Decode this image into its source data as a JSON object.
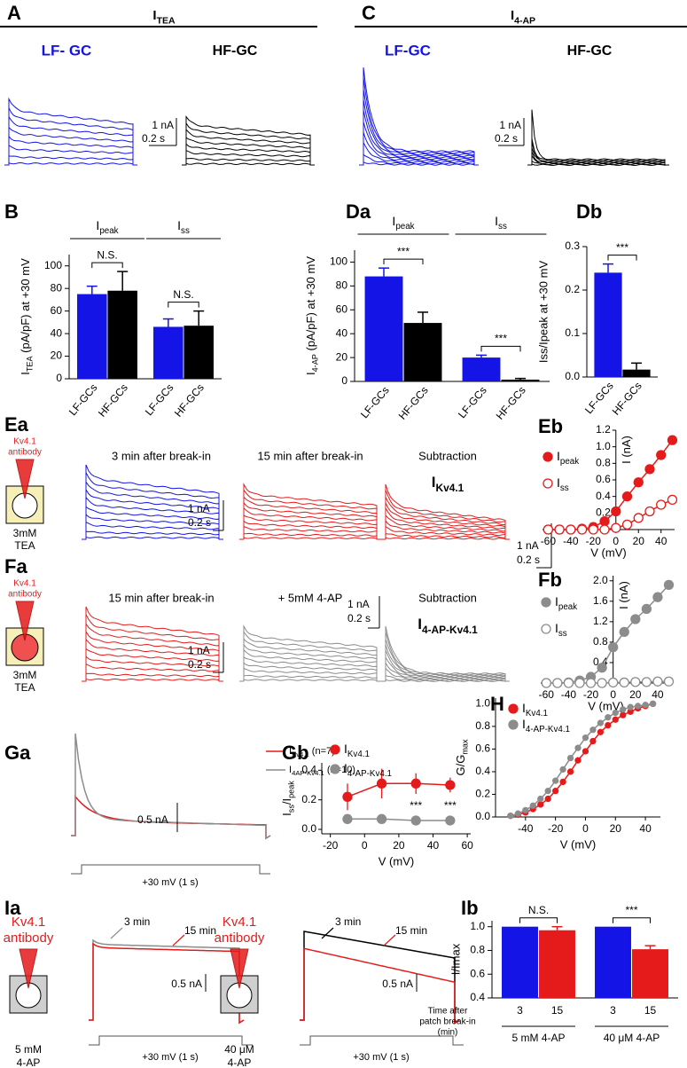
{
  "figure": {
    "A": {
      "label": "A",
      "title": [
        "I",
        "TEA"
      ],
      "left": "LF- GC",
      "right": "HF-GC",
      "scale_y": "1 nA",
      "scale_x": "0.2 s"
    },
    "C": {
      "label": "C",
      "title": [
        "I",
        "4-AP"
      ],
      "left": "LF-GC",
      "right": "HF-GC",
      "scale_y": "1 nA",
      "scale_x": "0.2 s"
    },
    "Ea": {
      "label": "Ea",
      "antibody_1": "Kv4.1",
      "antibody_2": "antibody",
      "bath_1": "3mM",
      "bath_2": "TEA",
      "trace_1": "3 min after break-in",
      "trace_2": "15 min after break-in",
      "trace_3": "Subtraction",
      "trace_3_current": [
        "I",
        "Kv4.1"
      ],
      "scale_y": "1 nA",
      "scale_x": "0.2 s",
      "scale2_y": "1 nA",
      "scale2_x": "0.2 s"
    },
    "Fa": {
      "label": "Fa",
      "antibody_1": "Kv4.1",
      "antibody_2": "antibody",
      "bath_1": "3mM",
      "bath_2": "TEA",
      "trace_1": "15 min after break-in",
      "trace_2": "+ 5mM 4-AP",
      "trace_3": "Subtraction",
      "trace_3_current": [
        "I",
        "4-AP-Kv4.1"
      ],
      "scale_y": "1 nA",
      "scale_x": "0.2 s",
      "scale2_y": "1 nA",
      "scale2_x": "0.2 s"
    },
    "Ga": {
      "label": "Ga",
      "legend_1": [
        "I",
        "Kv4.1",
        " (n=7)"
      ],
      "legend_2": [
        "I",
        "4AP-Kv4.1",
        " (n=10)"
      ],
      "scale_y": "0.5 nA",
      "protocol": "+30 mV (1 s)"
    },
    "Ia": {
      "label": "Ia",
      "left": {
        "antibody_1": "Kv4.1",
        "antibody_2": "antibody",
        "early": "3 min",
        "late": "15 min",
        "scale_y": "0.5 nA",
        "protocol": "+30 mV  (1 s)",
        "drug_1": "5 mM",
        "drug_2": "4-AP"
      },
      "right": {
        "antibody_1": "Kv4.1",
        "antibody_2": "antibody",
        "early": "3 min",
        "late": "15 min",
        "scale_y": "0.5 nA",
        "protocol": "+30 mV  (1 s)",
        "drug_1": "40 μM",
        "drug_2": "4-AP"
      }
    }
  },
  "chart_data": [
    {
      "label": "B",
      "type": "bar",
      "ylabel": [
        "I",
        "TEA",
        " (pA/pF) at +30 mV"
      ],
      "categories": [
        "LF-GCs",
        "HF-GCs",
        "LF-GCs",
        "HF-GCs"
      ],
      "values": [
        75,
        78,
        46,
        47
      ],
      "errors": [
        7,
        17,
        7,
        13
      ],
      "colors": [
        "#1414e6",
        "#000000",
        "#1414e6",
        "#000000"
      ],
      "ylim": [
        0,
        110
      ],
      "yticks": [
        0,
        20,
        40,
        60,
        80,
        100
      ],
      "groups": [
        [
          "I",
          "peak"
        ],
        [
          "I",
          "ss"
        ]
      ],
      "annotations": [
        "N.S.",
        "N.S."
      ],
      "xtick_rotation": 50
    },
    {
      "label": "Da",
      "type": "bar",
      "ylabel": [
        "I",
        "4-AP",
        " (pA/pF) at +30 mV"
      ],
      "categories": [
        "LF-GCs",
        "HF-GCs",
        "LF-GCs",
        "HF-GCs"
      ],
      "values": [
        88,
        49,
        20,
        1.5
      ],
      "errors": [
        7,
        9,
        2,
        1
      ],
      "colors": [
        "#1414e6",
        "#000000",
        "#1414e6",
        "#000000"
      ],
      "ylim": [
        0,
        110
      ],
      "yticks": [
        0,
        20,
        40,
        60,
        80,
        100
      ],
      "groups": [
        [
          "I",
          "peak"
        ],
        [
          "I",
          "ss"
        ]
      ],
      "annotations": [
        "***",
        "***"
      ],
      "xtick_rotation": 50
    },
    {
      "label": "Db",
      "type": "bar",
      "ylabel": "Iss/Ipeak at +30 mV",
      "categories": [
        "LF-GCs",
        "HF-GCs"
      ],
      "values": [
        0.24,
        0.017
      ],
      "errors": [
        0.02,
        0.015
      ],
      "colors": [
        "#1414e6",
        "#000000"
      ],
      "ylim": [
        0,
        0.3
      ],
      "yticks": [
        {
          "value": 0,
          "label": "0.0"
        },
        0.1,
        0.2,
        0.3
      ],
      "annotations": [
        "***"
      ],
      "xtick_rotation": 50
    },
    {
      "label": "Eb",
      "type": "line",
      "axes": "zero",
      "legend": "upper left",
      "x": [
        -60,
        -50,
        -40,
        -30,
        -20,
        -10,
        0,
        10,
        20,
        30,
        40,
        50
      ],
      "series": [
        {
          "name": [
            "I",
            "peak"
          ],
          "color": "#e51b1b",
          "values": [
            0,
            0,
            0,
            0.01,
            0.03,
            0.1,
            0.22,
            0.4,
            0.57,
            0.73,
            0.9,
            1.08
          ]
        },
        {
          "name": [
            "I",
            "ss"
          ],
          "color": "#e51b1b",
          "open": true,
          "values": [
            0,
            0,
            0,
            0,
            0,
            0,
            0.02,
            0.06,
            0.14,
            0.22,
            0.3,
            0.36
          ]
        }
      ],
      "xlim": [
        -65,
        52
      ],
      "xticks": [
        -60,
        -40,
        -20,
        0,
        20,
        40
      ],
      "ylim": [
        0,
        1.2
      ],
      "yticks": [
        0.2,
        0.4,
        0.6,
        0.8,
        {
          "value": 1,
          "label": "1.0"
        },
        1.2
      ],
      "xlabel": "V (mV)",
      "ylabel": "I (nA)"
    },
    {
      "label": "Fb",
      "type": "line",
      "axes": "zero",
      "legend": "upper left",
      "x": [
        -60,
        -50,
        -40,
        -30,
        -20,
        -10,
        0,
        10,
        20,
        30,
        40,
        50
      ],
      "series": [
        {
          "name": [
            "I",
            "peak"
          ],
          "color": "#8c8c8c",
          "values": [
            0,
            0,
            0.01,
            0.05,
            0.12,
            0.3,
            0.7,
            1.0,
            1.25,
            1.45,
            1.68,
            1.92
          ]
        },
        {
          "name": [
            "I",
            "ss"
          ],
          "color": "#8c8c8c",
          "open": true,
          "values": [
            0,
            0,
            0,
            0,
            0,
            0,
            0.01,
            0.01,
            0.02,
            0.02,
            0.03,
            0.03
          ]
        }
      ],
      "xlim": [
        -65,
        52
      ],
      "xticks": [
        -60,
        -40,
        -20,
        0,
        20,
        40
      ],
      "ylim": [
        0,
        2.1
      ],
      "yticks": [
        0.4,
        0.8,
        1.2,
        1.6,
        {
          "value": 2,
          "label": "2.0"
        }
      ],
      "xlabel": "V (mV)",
      "ylabel": "I (nA)"
    },
    {
      "label": "Gb",
      "type": "line",
      "axes": "box",
      "legend": "top",
      "x": [
        -10,
        10,
        30,
        50
      ],
      "series": [
        {
          "name": [
            "I",
            "Kv4.1"
          ],
          "color": "#e51b1b",
          "values": [
            0.22,
            0.31,
            0.31,
            0.3
          ],
          "errors": [
            0.09,
            0.1,
            0.07,
            0.05
          ]
        },
        {
          "name": [
            "I",
            "4-AP-Kv4.1"
          ],
          "color": "#8c8c8c",
          "values": [
            0.07,
            0.07,
            0.06,
            0.06
          ],
          "errors": [
            0.01,
            0.01,
            0.01,
            0.01
          ]
        }
      ],
      "annotations": [
        "***",
        "***"
      ],
      "xlim": [
        -25,
        62
      ],
      "xticks": [
        -20,
        0,
        20,
        40,
        60
      ],
      "ylim": [
        -0.03,
        0.45
      ],
      "yticks": [
        {
          "value": 0,
          "label": "0.0"
        },
        0.2,
        0.4
      ],
      "xlabel": "V (mV)",
      "ylabel": [
        "I",
        "ss",
        "/I",
        "peak"
      ]
    },
    {
      "label": "H",
      "type": "line",
      "axes": "box",
      "legend": "upper left",
      "marker_size": 3,
      "x": [
        -50,
        -45,
        -40,
        -35,
        -30,
        -25,
        -20,
        -15,
        -10,
        -5,
        0,
        5,
        10,
        15,
        20,
        25,
        30,
        35,
        40,
        45
      ],
      "series": [
        {
          "name": [
            "I",
            "Kv4.1"
          ],
          "color": "#e51b1b",
          "values": [
            0.01,
            0.02,
            0.04,
            0.07,
            0.11,
            0.16,
            0.23,
            0.31,
            0.4,
            0.5,
            0.58,
            0.67,
            0.75,
            0.81,
            0.86,
            0.9,
            0.93,
            0.96,
            0.98,
            1.0
          ]
        },
        {
          "name": [
            "I",
            "4-AP-Kv4.1"
          ],
          "color": "#8c8c8c",
          "values": [
            0.01,
            0.03,
            0.06,
            0.1,
            0.16,
            0.23,
            0.32,
            0.42,
            0.52,
            0.61,
            0.7,
            0.77,
            0.83,
            0.88,
            0.92,
            0.95,
            0.97,
            0.98,
            0.99,
            1.0
          ]
        }
      ],
      "xlim": [
        -60,
        50
      ],
      "xticks": [
        -40,
        -20,
        0,
        20,
        40
      ],
      "ylim": [
        0,
        1.05
      ],
      "yticks": [
        {
          "value": 0,
          "label": "0.0"
        },
        0.2,
        0.4,
        0.6,
        0.8,
        {
          "value": 1,
          "label": "1.0"
        }
      ],
      "xlabel": "V (mV)",
      "ylabel": [
        "G/G",
        "max"
      ]
    },
    {
      "label": "Ib",
      "type": "bar",
      "ylabel": "I/Imax",
      "categories": [
        "3",
        "15",
        "3",
        "15"
      ],
      "values": [
        1.0,
        0.97,
        1.0,
        0.81
      ],
      "errors": [
        0,
        0.03,
        0,
        0.03
      ],
      "colors": [
        "#1414e6",
        "#e51b1b",
        "#1414e6",
        "#e51b1b"
      ],
      "ylim": [
        0.4,
        1.05
      ],
      "yticks": [
        0.4,
        0.6,
        0.8,
        {
          "value": 1,
          "label": "1.0"
        }
      ],
      "annotations": [
        "N.S.",
        "***"
      ],
      "xtick_rotation": 0,
      "xgroups": [
        "5 mM 4-AP",
        "40 μM 4-AP"
      ],
      "row_label": [
        "Time after",
        "patch break-in",
        "(min)"
      ]
    }
  ]
}
